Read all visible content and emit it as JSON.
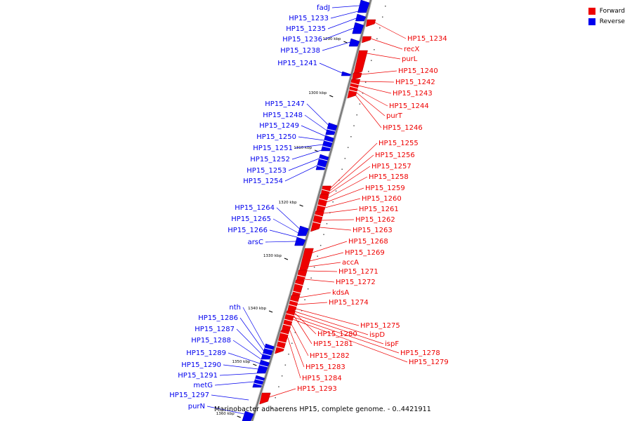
{
  "caption": "Marinobacter adhaerens HP15, complete genome. - 0..4421911",
  "legend": [
    {
      "label": "Forward",
      "color": "#ee0000"
    },
    {
      "label": "Reverse",
      "color": "#0000ee"
    }
  ],
  "colors": {
    "forward": "#ee0000",
    "reverse": "#0000ee",
    "backbone": "#777777"
  },
  "ruler_ticks": [
    "1290 kbp",
    "1300 kbp",
    "1310 kbp",
    "1320 kbp",
    "1330 kbp",
    "1340 kbp",
    "1350 kbp",
    "1360 kbp"
  ],
  "reverse_genes": [
    "fadJ",
    "HP15_1233",
    "HP15_1235",
    "HP15_1236",
    "HP15_1238",
    "HP15_1241",
    "HP15_1247",
    "HP15_1248",
    "HP15_1249",
    "HP15_1250",
    "HP15_1251",
    "HP15_1252",
    "HP15_1253",
    "HP15_1254",
    "HP15_1264",
    "HP15_1265",
    "HP15_1266",
    "arsC",
    "nth",
    "HP15_1286",
    "HP15_1287",
    "HP15_1288",
    "HP15_1289",
    "HP15_1290",
    "HP15_1291",
    "metG",
    "HP15_1297",
    "purN"
  ],
  "forward_genes": [
    "HP15_1234",
    "recX",
    "purL",
    "HP15_1240",
    "HP15_1242",
    "HP15_1243",
    "HP15_1244",
    "purT",
    "HP15_1246",
    "HP15_1255",
    "HP15_1256",
    "HP15_1257",
    "HP15_1258",
    "HP15_1259",
    "HP15_1260",
    "HP15_1261",
    "HP15_1262",
    "HP15_1263",
    "HP15_1268",
    "HP15_1269",
    "accA",
    "HP15_1271",
    "HP15_1272",
    "kdsA",
    "HP15_1274",
    "HP15_1275",
    "ispD",
    "HP15_1280",
    "ispF",
    "HP15_1281",
    "HP15_1278",
    "HP15_1279",
    "HP15_1282",
    "HP15_1283",
    "HP15_1284",
    "HP15_1293"
  ]
}
